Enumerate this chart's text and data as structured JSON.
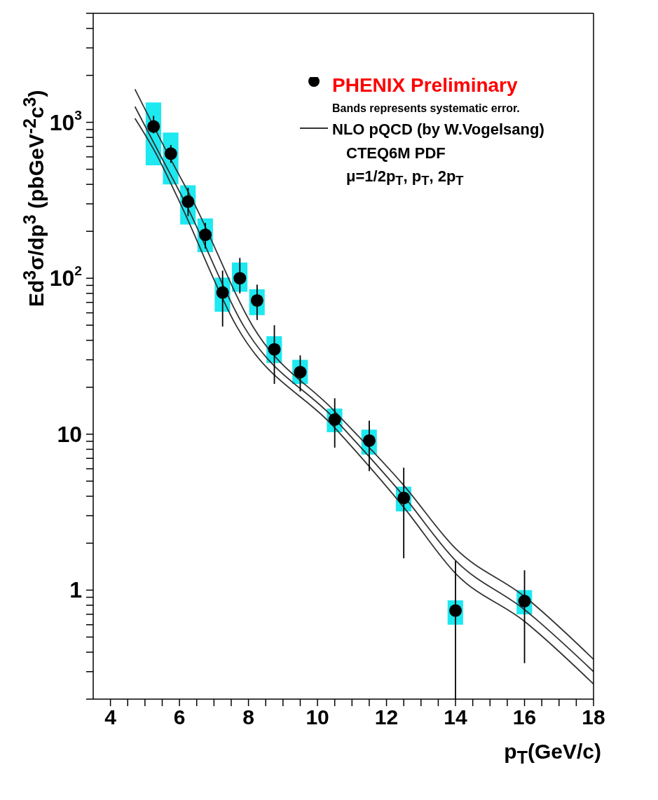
{
  "chart_data": {
    "type": "scatter",
    "xlabel": "p$_{T}$(GeV/c)",
    "ylabel": "Ed$^{3}$σ/dp$^{3}$ (pbGeV$^{-2}$c$^{3}$)",
    "annotations": [
      "Bands represents systematic error.",
      "CTEQ6M PDF",
      "μ=1/2p$_{T}$, p$_{T}$, 2p$_{T}$"
    ],
    "x": [
      5.25,
      5.75,
      6.25,
      6.75,
      7.25,
      7.75,
      8.25,
      8.75,
      9.5,
      10.5,
      11.5,
      12.5,
      14,
      16
    ],
    "series": [
      {
        "type": "bar",
        "color": "#1ee8f0",
        "base": [
          530,
          400,
          221,
          147,
          61,
          82,
          58,
          28.6,
          21,
          10.3,
          7.4,
          3.2,
          0.6,
          0.7
        ],
        "values": [
          810,
          460,
          174,
          95,
          40,
          44,
          27,
          13.9,
          9,
          4.3,
          3.3,
          1.4,
          0.26,
          0.3
        ]
      },
      {
        "type": "line",
        "marker": "none",
        "name": "NLO pQCD (by W.Vogelsang)",
        "color": "#333333",
        "x": [
          4.71,
          5.66,
          6.4,
          8.13,
          10.5,
          12.5,
          14,
          16,
          18
        ],
        "values": [
          1630,
          630,
          310,
          49,
          14,
          4.7,
          1.85,
          0.91,
          0.36
        ]
      },
      {
        "type": "line",
        "marker": "none",
        "color": "#333333",
        "x": [
          4.71,
          5.42,
          6.15,
          7.87,
          10.5,
          12.5,
          14,
          16,
          18
        ],
        "values": [
          1260,
          630,
          310,
          49,
          12.5,
          4.0,
          1.55,
          0.75,
          0.3
        ]
      },
      {
        "type": "line",
        "marker": "none",
        "color": "#333333",
        "x": [
          4.71,
          5.32,
          6.0,
          7.66,
          10.5,
          12.5,
          14,
          16,
          18
        ],
        "values": [
          1060,
          630,
          310,
          49,
          11,
          3.4,
          1.28,
          0.63,
          0.25
        ]
      },
      {
        "marker": "circle",
        "name": "PHENIX Preliminary",
        "color": "#000000",
        "values": [
          940,
          630,
          310,
          190,
          81,
          100,
          72,
          35,
          25,
          12.4,
          9.1,
          3.9,
          0.74,
          0.85
        ],
        "errors": [
          [
            850,
            1100
          ],
          [
            550,
            715
          ],
          [
            250,
            380
          ],
          [
            155,
            226
          ],
          [
            49,
            112
          ],
          [
            80,
            135
          ],
          [
            54,
            91
          ],
          [
            21,
            50
          ],
          [
            18.8,
            32
          ],
          [
            8.2,
            17
          ],
          [
            5.8,
            12.2
          ],
          [
            1.6,
            6.1
          ],
          [
            0.2,
            1.54
          ],
          [
            0.34,
            1.34
          ]
        ]
      }
    ],
    "xlim": [
      3.5,
      18
    ],
    "xticks": [
      4,
      {
        "value": 4.5,
        "label": null
      },
      {
        "value": 5,
        "label": null
      },
      {
        "value": 5.5,
        "label": null
      },
      6,
      {
        "value": 6.5,
        "label": null
      },
      {
        "value": 7,
        "label": null
      },
      {
        "value": 7.5,
        "label": null
      },
      8,
      {
        "value": 8.5,
        "label": null
      },
      {
        "value": 9,
        "label": null
      },
      {
        "value": 9.5,
        "label": null
      },
      10,
      {
        "value": 10.5,
        "label": null
      },
      {
        "value": 11,
        "label": null
      },
      {
        "value": 11.5,
        "label": null
      },
      12,
      {
        "value": 12.5,
        "label": null
      },
      {
        "value": 13,
        "label": null
      },
      {
        "value": 13.5,
        "label": null
      },
      14,
      {
        "value": 14.5,
        "label": null
      },
      {
        "value": 15,
        "label": null
      },
      {
        "value": 15.5,
        "label": null
      },
      16,
      {
        "value": 16.5,
        "label": null
      },
      {
        "value": 17,
        "label": null
      },
      {
        "value": 17.5,
        "label": null
      },
      18
    ],
    "ylim": [
      0.2,
      5000
    ],
    "yticks": [
      {
        "value": 0.2,
        "label": null
      },
      {
        "value": 0.3,
        "label": null
      },
      {
        "value": 0.4,
        "label": null
      },
      {
        "value": 0.5,
        "label": null
      },
      {
        "value": 0.6,
        "label": null
      },
      {
        "value": 0.7,
        "label": null
      },
      {
        "value": 0.8,
        "label": null
      },
      {
        "value": 0.9,
        "label": null
      },
      1,
      {
        "value": 2,
        "label": null
      },
      {
        "value": 3,
        "label": null
      },
      {
        "value": 4,
        "label": null
      },
      {
        "value": 5,
        "label": null
      },
      {
        "value": 6,
        "label": null
      },
      {
        "value": 7,
        "label": null
      },
      {
        "value": 8,
        "label": null
      },
      {
        "value": 9,
        "label": null
      },
      10,
      {
        "value": 20,
        "label": null
      },
      {
        "value": 30,
        "label": null
      },
      {
        "value": 40,
        "label": null
      },
      {
        "value": 50,
        "label": null
      },
      {
        "value": 60,
        "label": null
      },
      {
        "value": 70,
        "label": null
      },
      {
        "value": 80,
        "label": null
      },
      {
        "value": 90,
        "label": null
      },
      {
        "value": 100,
        "label": "10$^{2}$"
      },
      {
        "value": 200,
        "label": null
      },
      {
        "value": 300,
        "label": null
      },
      {
        "value": 400,
        "label": null
      },
      {
        "value": 500,
        "label": null
      },
      {
        "value": 600,
        "label": null
      },
      {
        "value": 700,
        "label": null
      },
      {
        "value": 800,
        "label": null
      },
      {
        "value": 900,
        "label": null
      },
      {
        "value": 1000,
        "label": "10$^{3}$"
      },
      {
        "value": 2000,
        "label": null
      },
      {
        "value": 3000,
        "label": null
      },
      {
        "value": 4000,
        "label": null
      },
      {
        "value": 5000,
        "label": null
      }
    ],
    "log": true,
    "grid": false,
    "legend": "top right",
    "line_style": "solid"
  }
}
